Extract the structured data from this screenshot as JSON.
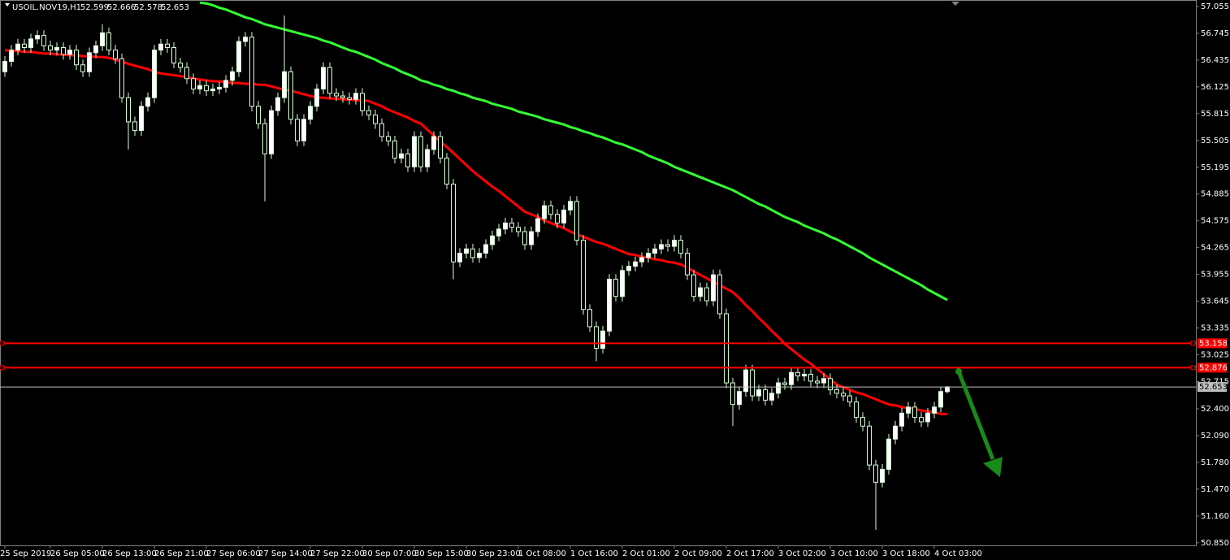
{
  "chart_data": {
    "type": "candlestick",
    "title": "USOIL.NOV19,H1",
    "background": "#000000",
    "up_color": "#ffffff",
    "down_color": "#000000",
    "wick_color": "#d8ffd8",
    "ylim": [
      50.82,
      57.13
    ],
    "yticks": [
      57.055,
      56.745,
      56.435,
      56.125,
      55.815,
      55.505,
      55.195,
      54.885,
      54.575,
      54.265,
      53.955,
      53.645,
      53.335,
      53.025,
      52.715,
      {
        "value": 52.4,
        "label": "52.400"
      },
      {
        "value": 52.09,
        "label": "52.090"
      },
      {
        "value": 51.78,
        "label": "51.780"
      },
      {
        "value": 51.47,
        "label": "51.470"
      },
      {
        "value": 51.16,
        "label": "51.160"
      },
      {
        "value": 50.85,
        "label": "50.850"
      }
    ],
    "categories": [
      "25 Sep 2019",
      null,
      null,
      null,
      null,
      null,
      null,
      "26 Sep 05:00",
      null,
      null,
      null,
      null,
      null,
      null,
      null,
      "26 Sep 13:00",
      null,
      null,
      null,
      null,
      null,
      null,
      null,
      "26 Sep 21:00",
      null,
      null,
      null,
      null,
      null,
      null,
      null,
      "27 Sep 06:00",
      null,
      null,
      null,
      null,
      null,
      null,
      null,
      "27 Sep 14:00",
      null,
      null,
      null,
      null,
      null,
      null,
      null,
      "27 Sep 22:00",
      null,
      null,
      null,
      null,
      null,
      null,
      null,
      "30 Sep 07:00",
      null,
      null,
      null,
      null,
      null,
      null,
      null,
      "30 Sep 15:00",
      null,
      null,
      null,
      null,
      null,
      null,
      null,
      "30 Sep 23:00",
      null,
      null,
      null,
      null,
      null,
      null,
      null,
      "1 Oct 08:00",
      null,
      null,
      null,
      null,
      null,
      null,
      null,
      "1 Oct 16:00",
      null,
      null,
      null,
      null,
      null,
      null,
      null,
      "2 Oct 01:00",
      null,
      null,
      null,
      null,
      null,
      null,
      null,
      "2 Oct 09:00",
      null,
      null,
      null,
      null,
      null,
      null,
      null,
      "2 Oct 17:00",
      null,
      null,
      null,
      null,
      null,
      null,
      null,
      "3 Oct 02:00",
      null,
      null,
      null,
      null,
      null,
      null,
      null,
      "3 Oct 10:00",
      null,
      null,
      null,
      null,
      null,
      null,
      null,
      "3 Oct 18:00",
      null,
      null,
      null,
      null,
      null,
      null,
      null,
      "4 Oct 03:00",
      null,
      null
    ],
    "open": [
      56.3,
      56.42,
      56.55,
      56.62,
      56.58,
      56.68,
      56.72,
      56.6,
      56.55,
      56.58,
      56.5,
      56.55,
      56.38,
      56.3,
      56.52,
      56.6,
      56.75,
      56.55,
      56.45,
      56.0,
      55.72,
      55.62,
      55.9,
      56.0,
      56.55,
      56.62,
      56.58,
      56.4,
      56.35,
      56.22,
      56.1,
      56.14,
      56.08,
      56.1,
      56.12,
      56.2,
      56.3,
      56.65,
      56.7,
      55.9,
      55.7,
      55.35,
      55.85,
      56.0,
      56.3,
      55.75,
      55.5,
      55.75,
      55.9,
      56.1,
      56.35,
      56.05,
      56.02,
      56.0,
      55.98,
      56.05,
      55.85,
      55.8,
      55.7,
      55.55,
      55.5,
      55.3,
      55.35,
      55.2,
      55.55,
      55.2,
      55.4,
      55.55,
      55.3,
      55.0,
      54.1,
      54.2,
      54.25,
      54.15,
      54.2,
      54.3,
      54.4,
      54.48,
      54.55,
      54.5,
      54.45,
      54.3,
      54.45,
      54.6,
      54.75,
      54.65,
      54.55,
      54.7,
      54.8,
      54.35,
      53.55,
      53.35,
      53.1,
      53.3,
      53.9,
      53.7,
      54.0,
      54.05,
      54.1,
      54.15,
      54.2,
      54.25,
      54.3,
      54.28,
      54.35,
      54.2,
      53.95,
      53.7,
      53.8,
      53.65,
      53.95,
      53.5,
      52.7,
      52.45,
      52.6,
      52.85,
      52.55,
      52.62,
      52.5,
      52.58,
      52.7,
      52.68,
      52.82,
      52.78,
      52.8,
      52.72,
      52.7,
      52.75,
      52.62,
      52.58,
      52.55,
      52.48,
      52.3,
      52.2,
      51.75,
      51.55,
      51.7,
      52.05,
      52.2,
      52.35,
      52.42,
      52.3,
      52.25,
      52.35,
      52.42,
      52.599
    ],
    "high": [
      56.48,
      56.61,
      56.68,
      56.68,
      56.74,
      56.78,
      56.78,
      56.66,
      56.64,
      56.64,
      56.61,
      56.61,
      56.44,
      56.58,
      56.66,
      56.85,
      56.81,
      56.61,
      56.51,
      56.06,
      55.78,
      55.96,
      56.06,
      56.61,
      56.68,
      56.68,
      56.64,
      56.46,
      56.41,
      56.28,
      56.2,
      56.2,
      56.16,
      56.18,
      56.26,
      56.36,
      56.71,
      56.76,
      56.76,
      55.96,
      55.76,
      55.91,
      56.06,
      56.95,
      56.36,
      55.81,
      55.81,
      55.96,
      56.16,
      56.41,
      56.41,
      56.11,
      56.08,
      56.06,
      56.11,
      56.11,
      55.91,
      55.86,
      55.76,
      55.61,
      55.56,
      55.41,
      55.41,
      55.61,
      55.61,
      55.46,
      55.61,
      55.61,
      55.36,
      55.06,
      54.26,
      54.31,
      54.31,
      54.26,
      54.36,
      54.46,
      54.54,
      54.61,
      54.61,
      54.56,
      54.51,
      54.51,
      54.66,
      54.81,
      54.81,
      54.71,
      54.76,
      54.86,
      54.86,
      54.41,
      53.61,
      53.41,
      53.36,
      53.96,
      53.96,
      54.06,
      54.11,
      54.16,
      54.21,
      54.26,
      54.31,
      54.36,
      54.36,
      54.41,
      54.41,
      54.26,
      54.01,
      53.86,
      53.86,
      54.01,
      54.01,
      53.56,
      52.76,
      52.66,
      52.91,
      52.91,
      52.68,
      52.68,
      52.64,
      52.76,
      52.76,
      52.88,
      52.88,
      52.86,
      52.86,
      52.78,
      52.81,
      52.81,
      52.68,
      52.64,
      52.61,
      52.54,
      52.36,
      52.26,
      51.81,
      51.76,
      52.11,
      52.26,
      52.41,
      52.48,
      52.48,
      52.36,
      52.41,
      52.48,
      52.66,
      52.666
    ],
    "low": [
      56.24,
      56.36,
      56.49,
      56.52,
      56.52,
      56.62,
      56.54,
      56.49,
      56.49,
      56.44,
      56.44,
      56.32,
      56.24,
      56.24,
      56.46,
      56.54,
      56.49,
      56.39,
      55.94,
      55.4,
      55.56,
      55.56,
      55.84,
      55.94,
      56.49,
      56.52,
      56.34,
      56.29,
      56.16,
      56.04,
      56.04,
      56.02,
      56.02,
      56.04,
      56.06,
      56.14,
      56.24,
      56.59,
      55.84,
      55.64,
      54.8,
      55.29,
      55.79,
      55.94,
      55.69,
      55.44,
      55.44,
      55.69,
      55.84,
      56.04,
      55.99,
      55.96,
      55.94,
      55.92,
      55.92,
      55.79,
      55.74,
      55.64,
      55.49,
      55.44,
      55.24,
      55.24,
      55.14,
      55.14,
      55.14,
      55.14,
      55.34,
      55.24,
      54.94,
      53.9,
      54.04,
      54.14,
      54.09,
      54.09,
      54.14,
      54.24,
      54.34,
      54.42,
      54.44,
      54.39,
      54.24,
      54.24,
      54.39,
      54.54,
      54.59,
      54.49,
      54.49,
      54.64,
      54.29,
      53.49,
      53.29,
      52.95,
      53.04,
      53.24,
      53.64,
      53.64,
      53.94,
      53.99,
      54.04,
      54.09,
      54.14,
      54.19,
      54.22,
      54.22,
      54.14,
      53.89,
      53.64,
      53.64,
      53.59,
      53.59,
      53.44,
      52.64,
      52.2,
      52.39,
      52.54,
      52.49,
      52.49,
      52.44,
      52.44,
      52.52,
      52.62,
      52.62,
      52.72,
      52.72,
      52.66,
      52.64,
      52.64,
      52.56,
      52.52,
      52.49,
      52.42,
      52.24,
      52.14,
      51.69,
      51.0,
      51.49,
      51.64,
      51.99,
      52.14,
      52.29,
      52.24,
      52.19,
      52.19,
      52.29,
      52.36,
      52.578
    ],
    "close": [
      56.42,
      56.55,
      56.62,
      56.58,
      56.68,
      56.72,
      56.6,
      56.55,
      56.58,
      56.5,
      56.55,
      56.38,
      56.3,
      56.52,
      56.6,
      56.75,
      56.55,
      56.45,
      56.0,
      55.72,
      55.62,
      55.9,
      56.0,
      56.55,
      56.62,
      56.58,
      56.4,
      56.35,
      56.22,
      56.1,
      56.14,
      56.08,
      56.1,
      56.12,
      56.2,
      56.3,
      56.65,
      56.7,
      55.9,
      55.7,
      55.35,
      55.85,
      56.0,
      56.3,
      55.75,
      55.5,
      55.75,
      55.9,
      56.1,
      56.35,
      56.05,
      56.02,
      56.0,
      55.98,
      56.05,
      55.85,
      55.8,
      55.7,
      55.55,
      55.5,
      55.3,
      55.35,
      55.2,
      55.55,
      55.2,
      55.4,
      55.55,
      55.3,
      55.0,
      54.1,
      54.2,
      54.25,
      54.15,
      54.2,
      54.3,
      54.4,
      54.48,
      54.55,
      54.5,
      54.45,
      54.3,
      54.45,
      54.6,
      54.75,
      54.65,
      54.55,
      54.7,
      54.8,
      54.35,
      53.55,
      53.35,
      53.1,
      53.3,
      53.9,
      53.7,
      54.0,
      54.05,
      54.1,
      54.15,
      54.2,
      54.25,
      54.3,
      54.28,
      54.35,
      54.2,
      53.95,
      53.7,
      53.8,
      53.65,
      53.95,
      53.5,
      52.7,
      52.45,
      52.6,
      52.85,
      52.55,
      52.62,
      52.5,
      52.58,
      52.7,
      52.68,
      52.82,
      52.78,
      52.8,
      52.72,
      52.7,
      52.75,
      52.62,
      52.58,
      52.55,
      52.48,
      52.3,
      52.2,
      51.75,
      51.55,
      51.7,
      52.05,
      52.2,
      52.35,
      52.42,
      52.3,
      52.25,
      52.35,
      52.42,
      52.6,
      52.653
    ],
    "moving_averages": [
      {
        "color": "#ff0000",
        "values": [
          56.55,
          56.54,
          56.54,
          56.53,
          56.53,
          56.52,
          56.51,
          56.51,
          56.5,
          56.5,
          56.49,
          56.49,
          56.48,
          56.48,
          56.47,
          56.47,
          56.46,
          56.44,
          56.42,
          56.39,
          56.37,
          56.35,
          56.33,
          56.3,
          56.28,
          56.27,
          56.26,
          56.25,
          56.24,
          56.22,
          56.21,
          56.2,
          56.19,
          56.19,
          56.18,
          56.17,
          56.17,
          56.16,
          56.16,
          56.15,
          56.15,
          56.13,
          56.11,
          56.09,
          56.08,
          56.06,
          56.04,
          56.02,
          56.0,
          56.0,
          55.99,
          55.99,
          55.98,
          55.98,
          55.97,
          55.97,
          55.96,
          55.93,
          55.9,
          55.86,
          55.83,
          55.8,
          55.77,
          55.73,
          55.7,
          55.63,
          55.56,
          55.49,
          55.43,
          55.36,
          55.29,
          55.22,
          55.15,
          55.09,
          55.03,
          54.97,
          54.92,
          54.86,
          54.8,
          54.74,
          54.68,
          54.65,
          54.62,
          54.58,
          54.55,
          54.52,
          54.49,
          54.45,
          54.42,
          54.39,
          54.36,
          54.33,
          54.31,
          54.28,
          54.25,
          54.22,
          54.19,
          54.18,
          54.16,
          54.15,
          54.13,
          54.12,
          54.1,
          54.09,
          54.07,
          54.03,
          53.99,
          53.95,
          53.91,
          53.87,
          53.83,
          53.79,
          53.75,
          53.68,
          53.6,
          53.53,
          53.45,
          53.38,
          53.3,
          53.23,
          53.15,
          53.09,
          53.03,
          52.97,
          52.92,
          52.86,
          52.8,
          52.74,
          52.68,
          52.65,
          52.62,
          52.59,
          52.57,
          52.54,
          52.51,
          52.48,
          52.45,
          52.44,
          52.42,
          52.41,
          52.4,
          52.38,
          52.37,
          52.36,
          52.34,
          52.34
        ]
      },
      {
        "color": "#33ff33",
        "values": [
          null,
          null,
          null,
          null,
          null,
          null,
          null,
          null,
          null,
          null,
          null,
          null,
          null,
          null,
          null,
          null,
          null,
          null,
          null,
          null,
          null,
          null,
          null,
          null,
          null,
          null,
          null,
          null,
          null,
          null,
          57.1,
          57.09,
          57.07,
          57.04,
          57.02,
          56.99,
          56.96,
          56.93,
          56.91,
          56.88,
          56.85,
          56.83,
          56.81,
          56.79,
          56.77,
          56.75,
          56.73,
          56.71,
          56.69,
          56.66,
          56.64,
          56.61,
          56.58,
          56.55,
          56.53,
          56.5,
          56.47,
          56.44,
          56.4,
          56.37,
          56.34,
          56.3,
          56.27,
          56.24,
          56.2,
          56.18,
          56.15,
          56.13,
          56.1,
          56.08,
          56.05,
          56.03,
          56.0,
          55.98,
          55.96,
          55.93,
          55.91,
          55.89,
          55.87,
          55.84,
          55.82,
          55.8,
          55.78,
          55.75,
          55.73,
          55.71,
          55.69,
          55.66,
          55.64,
          55.61,
          55.59,
          55.56,
          55.54,
          55.51,
          55.48,
          55.46,
          55.43,
          55.4,
          55.37,
          55.33,
          55.3,
          55.27,
          55.24,
          55.2,
          55.17,
          55.14,
          55.11,
          55.08,
          55.05,
          55.02,
          54.99,
          54.96,
          54.93,
          54.89,
          54.85,
          54.81,
          54.77,
          54.74,
          54.7,
          54.66,
          54.62,
          54.59,
          54.56,
          54.52,
          54.49,
          54.46,
          54.43,
          54.39,
          54.36,
          54.32,
          54.28,
          54.24,
          54.2,
          54.15,
          54.11,
          54.07,
          54.03,
          53.99,
          53.95,
          53.91,
          53.87,
          53.83,
          53.78,
          53.74,
          53.7,
          53.66
        ]
      }
    ],
    "levels": [
      {
        "value": 53.158,
        "color": "#ff0000",
        "label_color": "#ffffff"
      },
      {
        "value": 52.876,
        "color": "#ff0000",
        "label_color": "#ffffff"
      },
      {
        "value": 52.653,
        "color": "#c0c0c0",
        "label_color": "#000000"
      }
    ]
  }
}
